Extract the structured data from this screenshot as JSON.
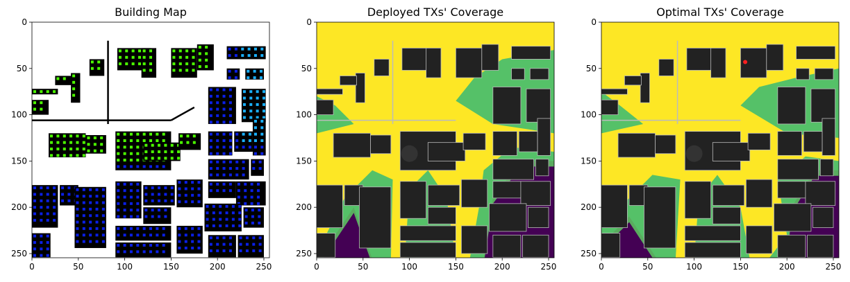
{
  "chart_data": [
    {
      "type": "heatmap",
      "title": "Building Map",
      "xlim": [
        0,
        256
      ],
      "ylim": [
        256,
        0
      ],
      "xticks": [
        0,
        50,
        100,
        150,
        200,
        250
      ],
      "yticks": [
        0,
        50,
        100,
        150,
        200,
        250
      ],
      "grid": false,
      "colors": {
        "background": "#ffffff",
        "building": "#000000",
        "point_green": "#4cff00",
        "point_blue": "#0a1fe6",
        "point_cyan": "#19b0ff"
      }
    },
    {
      "type": "heatmap",
      "title": "Deployed TXs' Coverage",
      "xlim": [
        0,
        256
      ],
      "ylim": [
        256,
        0
      ],
      "xticks": [
        0,
        50,
        100,
        150,
        200,
        250
      ],
      "yticks": [
        0,
        50,
        100,
        150,
        200,
        250
      ],
      "grid": false,
      "colors": {
        "high": "#fde725",
        "mid": "#5ec962",
        "low": "#21918c",
        "none": "#440154",
        "building": "#222222"
      }
    },
    {
      "type": "heatmap",
      "title": "Optimal TXs' Coverage",
      "xlim": [
        0,
        256
      ],
      "ylim": [
        256,
        0
      ],
      "xticks": [
        0,
        50,
        100,
        150,
        200,
        250
      ],
      "yticks": [
        0,
        50,
        100,
        150,
        200,
        250
      ],
      "grid": false,
      "tx_marker": {
        "x": 155,
        "y": 43,
        "color": "#ff2020"
      },
      "colors": {
        "high": "#fde725",
        "mid": "#5ec962",
        "low": "#21918c",
        "none": "#440154",
        "building": "#222222"
      }
    }
  ]
}
